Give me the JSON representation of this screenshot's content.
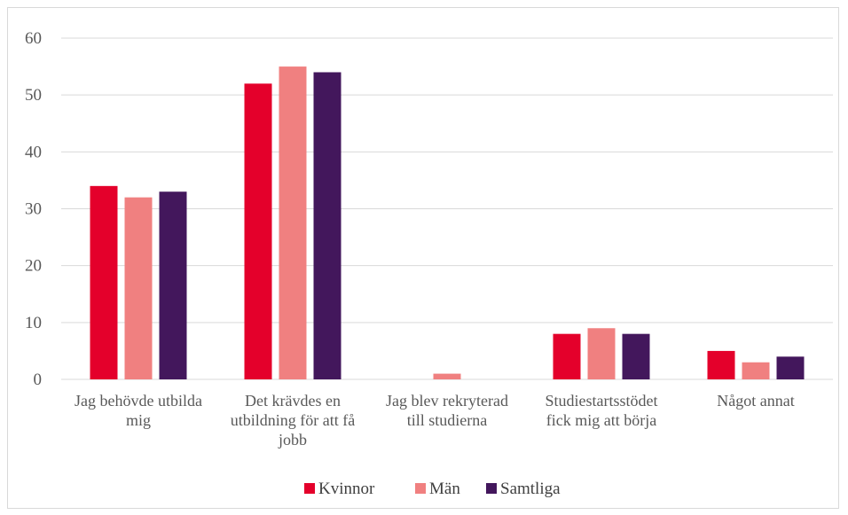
{
  "chart_data": {
    "type": "bar",
    "categories": [
      [
        "Jag behövde utbilda",
        "mig"
      ],
      [
        "Det krävdes en",
        "utbildning för att få",
        "jobb"
      ],
      [
        "Jag blev rekryterad",
        "till studierna"
      ],
      [
        "Studiestartsstödet",
        "fick mig att börja"
      ],
      [
        "Något annat"
      ]
    ],
    "series": [
      {
        "name": "Kvinnor",
        "color": "#e4002b",
        "values": [
          34,
          52,
          0,
          8,
          5
        ]
      },
      {
        "name": "Män",
        "color": "#f08080",
        "values": [
          32,
          55,
          1,
          9,
          3
        ]
      },
      {
        "name": "Samtliga",
        "color": "#43175c",
        "values": [
          33,
          54,
          0,
          8,
          4
        ]
      }
    ],
    "ylim": [
      0,
      60
    ],
    "yticks": [
      "0",
      "10",
      "20",
      "30",
      "40",
      "50",
      "60"
    ],
    "grid": true,
    "legend_position": "bottom",
    "gridline_color": "#d9d9d9"
  }
}
